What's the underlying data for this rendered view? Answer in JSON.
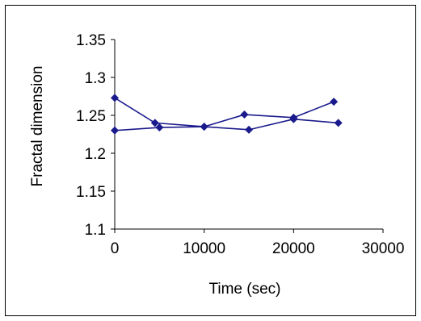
{
  "chart_data": {
    "type": "line",
    "title": "",
    "xlabel": "Time (sec)",
    "ylabel": "Fractal dimension",
    "xlim": [
      0,
      30000
    ],
    "ylim": [
      1.1,
      1.35
    ],
    "x_ticks": [
      "0",
      "10000",
      "20000",
      "30000"
    ],
    "y_ticks": [
      "1.1",
      "1.15",
      "1.2",
      "1.25",
      "1.3",
      "1.35"
    ],
    "grid": false,
    "legend": "none",
    "series": [
      {
        "color": "#1a1a8c",
        "marker": "diamond",
        "x": [
          0,
          4500,
          10000,
          14500,
          20000,
          24500
        ],
        "y": [
          1.273,
          1.24,
          1.235,
          1.251,
          1.247,
          1.268
        ]
      },
      {
        "color": "#1a1a8c",
        "marker": "diamond",
        "x": [
          0,
          5000,
          10000,
          15000,
          20000,
          25000
        ],
        "y": [
          1.23,
          1.234,
          1.235,
          1.231,
          1.245,
          1.24
        ]
      }
    ]
  }
}
